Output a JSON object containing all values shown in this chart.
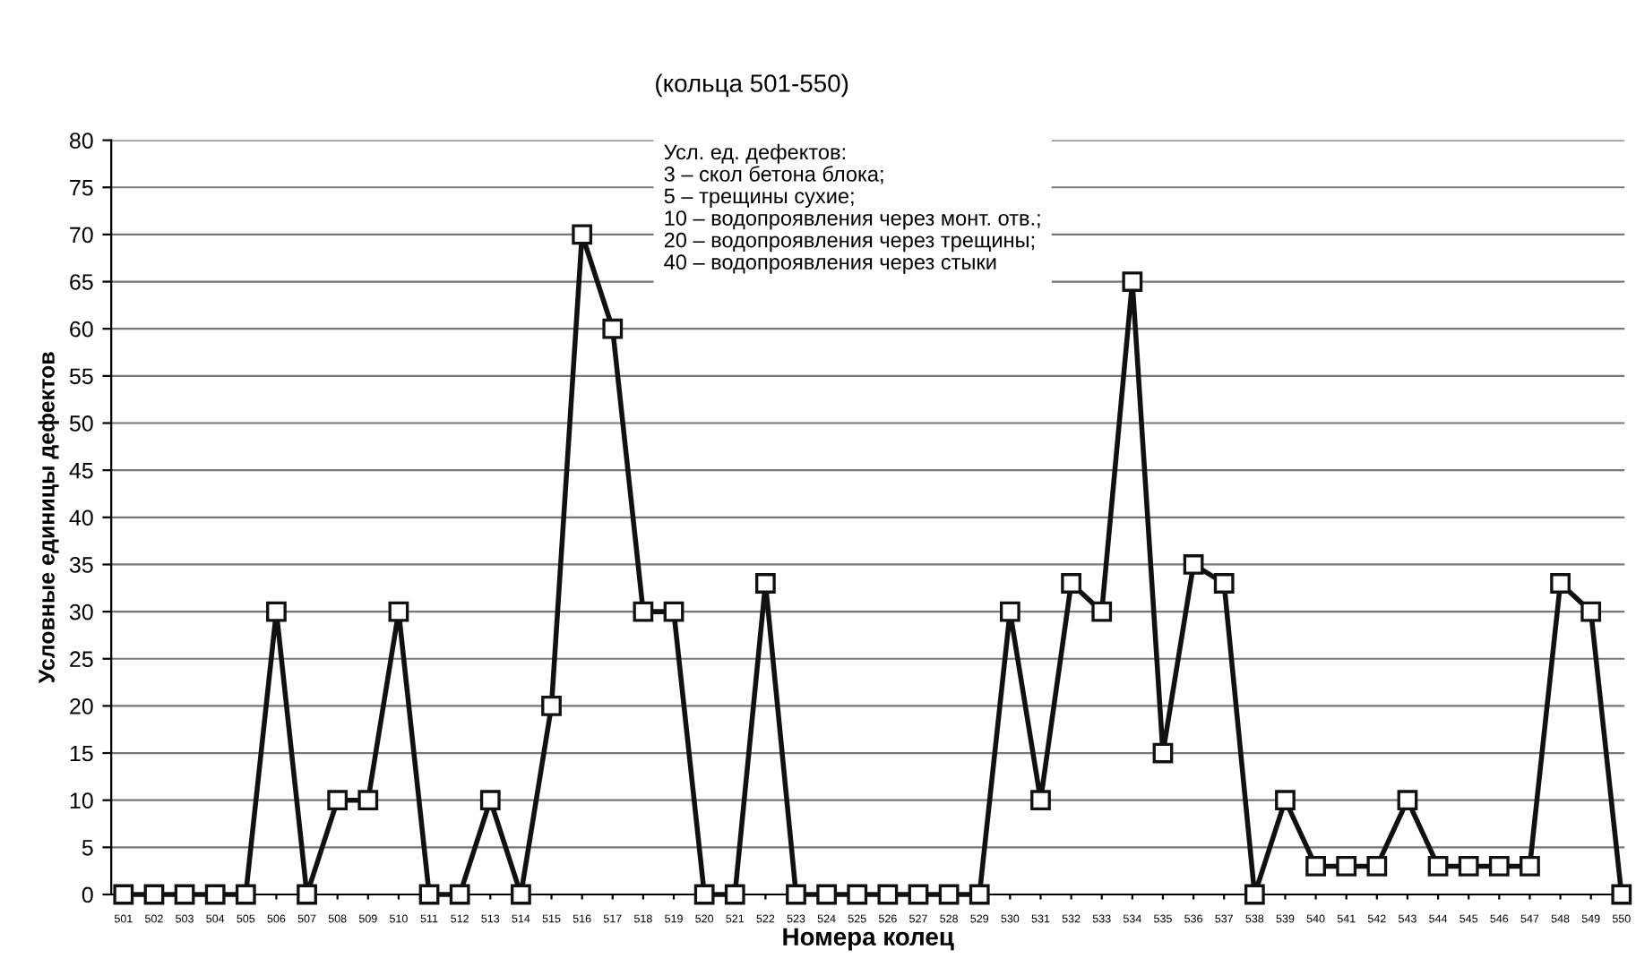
{
  "chart_data": {
    "type": "line",
    "title": "(кольца 501-550)",
    "xlabel": "Номера колец",
    "ylabel": "Условные единицы дефектов",
    "annotations": [
      "Усл. ед. дефектов:\n3 – скол бетона блока;\n5 – трещины сухие;\n10 – водопроявления через монт. отв.;\n20 – водопроявления через трещины;\n40 – водопроявления через стыки"
    ],
    "categories": [
      "501",
      "502",
      "503",
      "504",
      "505",
      "506",
      "507",
      "508",
      "509",
      "510",
      "511",
      "512",
      "513",
      "514",
      "515",
      "516",
      "517",
      "518",
      "519",
      "520",
      "521",
      "522",
      "523",
      "524",
      "525",
      "526",
      "527",
      "528",
      "529",
      "530",
      "531",
      "532",
      "533",
      "534",
      "535",
      "536",
      "537",
      "538",
      "539",
      "540",
      "541",
      "542",
      "543",
      "544",
      "545",
      "546",
      "547",
      "548",
      "549",
      "550"
    ],
    "series": [
      {
        "color": "#111111",
        "values": [
          0,
          0,
          0,
          0,
          0,
          30,
          0,
          10,
          10,
          30,
          0,
          0,
          10,
          0,
          20,
          70,
          60,
          30,
          30,
          0,
          0,
          33,
          0,
          0,
          0,
          0,
          0,
          0,
          0,
          30,
          10,
          33,
          30,
          65,
          15,
          35,
          33,
          0,
          10,
          3,
          3,
          3,
          10,
          3,
          3,
          3,
          3,
          33,
          30,
          0
        ]
      }
    ],
    "ylim": [
      0,
      80
    ],
    "yticks": [
      0,
      5,
      10,
      15,
      20,
      25,
      30,
      35,
      40,
      45,
      50,
      55,
      60,
      65,
      70,
      75,
      80
    ],
    "grid": "y",
    "marker": "square",
    "line_style": "solid"
  }
}
